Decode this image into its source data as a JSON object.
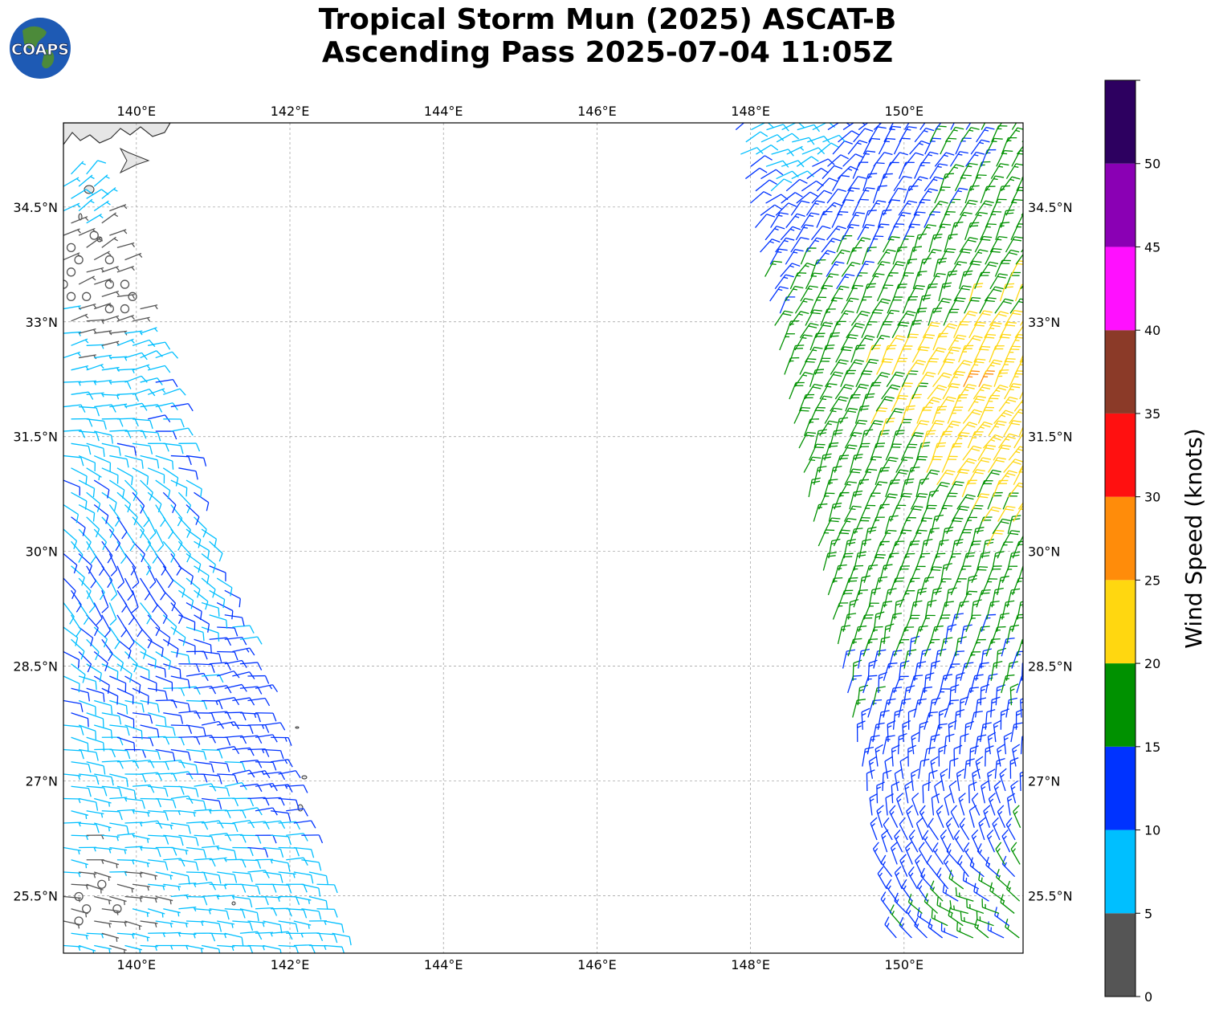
{
  "header": {
    "title_line1": "Tropical Storm Mun (2025) ASCAT-B",
    "title_line2": "Ascending Pass 2025-07-04 11:05Z",
    "logo_text": "COAPS"
  },
  "map": {
    "lon_range": [
      139.05,
      151.55
    ],
    "lat_range": [
      24.75,
      35.6
    ],
    "lon_ticks": [
      140,
      142,
      144,
      146,
      148,
      150
    ],
    "lon_tick_labels": [
      "140°E",
      "142°E",
      "144°E",
      "146°E",
      "148°E",
      "150°E"
    ],
    "lat_ticks": [
      25.5,
      27,
      28.5,
      30,
      31.5,
      33,
      34.5
    ],
    "lat_tick_labels": [
      "25.5°N",
      "27°N",
      "28.5°N",
      "30°N",
      "31.5°N",
      "33°N",
      "34.5°N"
    ],
    "gridlines": true,
    "land_color": "#e6e6e6",
    "coast_color": "#333333"
  },
  "colorbar": {
    "label": "Wind Speed (knots)",
    "boundaries": [
      0,
      5,
      10,
      15,
      20,
      25,
      30,
      35,
      40,
      45,
      50,
      55
    ],
    "tick_values": [
      0,
      5,
      10,
      15,
      20,
      25,
      30,
      35,
      40,
      45,
      50
    ],
    "tick_labels": [
      "0",
      "5",
      "10",
      "15",
      "20",
      "25",
      "30",
      "35",
      "40",
      "45",
      "50"
    ],
    "colors": [
      "#555555",
      "#00bfff",
      "#0033ff",
      "#009100",
      "#ffd710",
      "#ff8c0a",
      "#ff1010",
      "#8b3a28",
      "#ff10ff",
      "#8a00b4",
      "#2d0060"
    ]
  },
  "swaths": [
    {
      "name": "west",
      "lat_range": [
        24.85,
        35.05
      ],
      "lon_west": [
        139.05,
        139.05
      ],
      "lon_east": [
        142.6,
        139.5
      ],
      "wind_samples": [
        {
          "lat": 35.0,
          "lon": 139.3,
          "speed": 8,
          "dir": 45
        },
        {
          "lat": 34.0,
          "lon": 139.4,
          "speed": 3,
          "dir": 60
        },
        {
          "lat": 33.3,
          "lon": 139.6,
          "speed": 2,
          "dir": 80
        },
        {
          "lat": 32.5,
          "lon": 140.3,
          "speed": 9,
          "dir": 75
        },
        {
          "lat": 31.6,
          "lon": 141.0,
          "speed": 12,
          "dir": 70
        },
        {
          "lat": 30.5,
          "lon": 140.2,
          "speed": 9,
          "dir": 150
        },
        {
          "lat": 29.5,
          "lon": 139.8,
          "speed": 11,
          "dir": 160
        },
        {
          "lat": 28.3,
          "lon": 141.2,
          "speed": 12,
          "dir": 80
        },
        {
          "lat": 27.2,
          "lon": 141.5,
          "speed": 12,
          "dir": 85
        },
        {
          "lat": 26.3,
          "lon": 140.4,
          "speed": 8,
          "dir": 90
        },
        {
          "lat": 25.5,
          "lon": 139.6,
          "speed": 3,
          "dir": 100
        },
        {
          "lat": 25.1,
          "lon": 141.8,
          "speed": 8,
          "dir": 95
        }
      ]
    },
    {
      "name": "east",
      "lat_range": [
        24.95,
        35.55
      ],
      "lon_west": [
        149.9,
        147.8
      ],
      "lon_east": [
        151.55,
        151.55
      ],
      "wind_samples": [
        {
          "lat": 35.3,
          "lon": 148.5,
          "speed": 8,
          "dir": 70
        },
        {
          "lat": 34.5,
          "lon": 149.5,
          "speed": 12,
          "dir": 25
        },
        {
          "lat": 33.5,
          "lon": 150.3,
          "speed": 17,
          "dir": 20
        },
        {
          "lat": 32.5,
          "lon": 150.9,
          "speed": 22,
          "dir": 30
        },
        {
          "lat": 32.0,
          "lon": 151.0,
          "speed": 26,
          "dir": 30
        },
        {
          "lat": 31.4,
          "lon": 151.3,
          "speed": 22,
          "dir": 35
        },
        {
          "lat": 30.5,
          "lon": 149.5,
          "speed": 17,
          "dir": 20
        },
        {
          "lat": 29.0,
          "lon": 150.0,
          "speed": 17,
          "dir": 15
        },
        {
          "lat": 28.0,
          "lon": 150.3,
          "speed": 13,
          "dir": 15
        },
        {
          "lat": 27.0,
          "lon": 150.5,
          "speed": 12,
          "dir": 0
        },
        {
          "lat": 26.0,
          "lon": 150.5,
          "speed": 12,
          "dir": 330
        },
        {
          "lat": 25.3,
          "lon": 150.9,
          "speed": 16,
          "dir": 290
        }
      ]
    }
  ]
}
